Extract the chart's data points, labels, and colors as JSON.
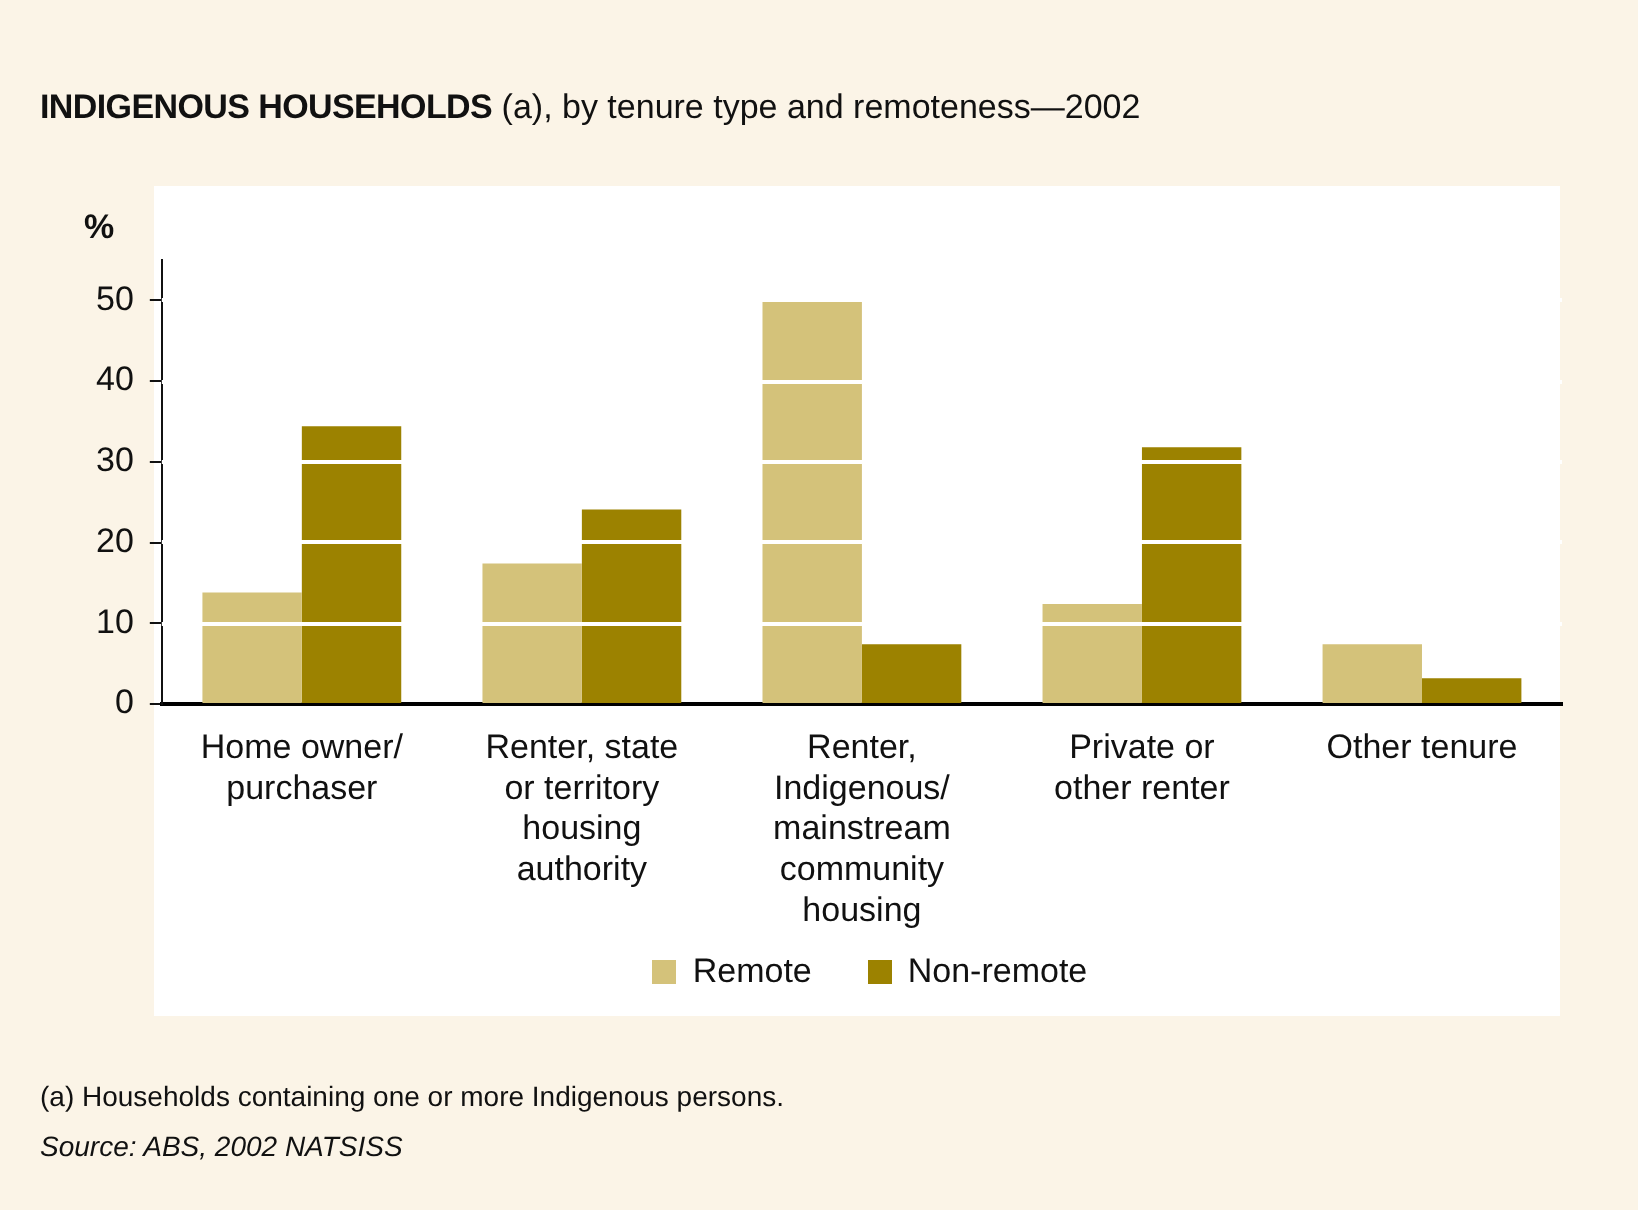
{
  "chart_data": {
    "type": "bar",
    "title": "INDIGENOUS HOUSEHOLDS (a), by tenure type and remoteness—2002",
    "ylabel": "%",
    "categories": [
      "Home owner/purchaser",
      "Renter, state or territory housing authority",
      "Renter, Indigenous/mainstream community housing",
      "Private or other renter",
      "Other tenure"
    ],
    "series": [
      {
        "name": "Remote",
        "color": "#d4c27a",
        "values": [
          13.8,
          17.4,
          50.0,
          12.4,
          7.4
        ]
      },
      {
        "name": "Non-remote",
        "color": "#9c8200",
        "values": [
          34.4,
          24.1,
          7.4,
          31.8,
          3.2
        ]
      }
    ],
    "ylim": [
      0,
      55
    ],
    "yticks": [
      0,
      10,
      20,
      30,
      40,
      50
    ],
    "grid": "y",
    "legend": "bottom",
    "annotations": [
      "(a) Households containing one or more Indigenous persons.",
      "Source: ABS, 2002 NATSISS"
    ]
  }
}
